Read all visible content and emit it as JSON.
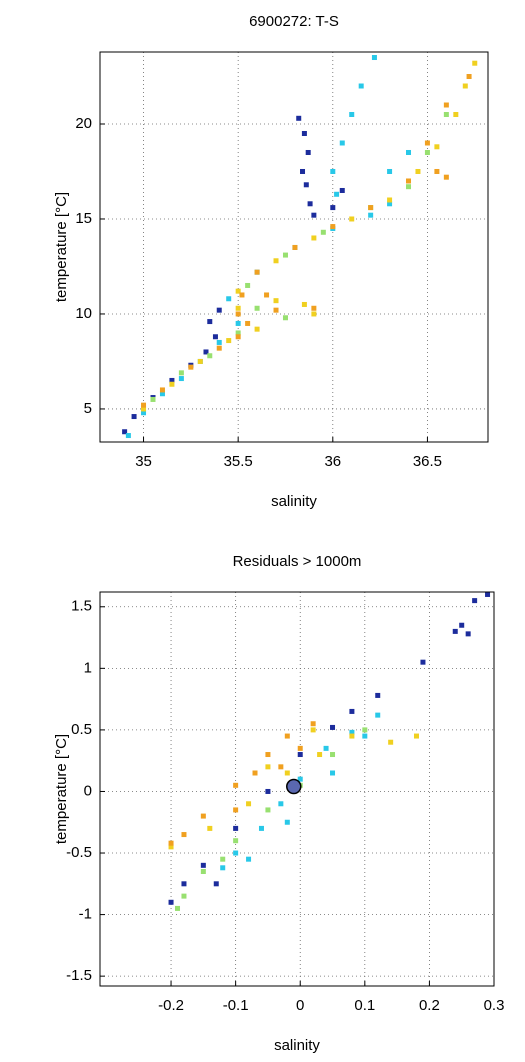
{
  "chart_data": [
    {
      "type": "scatter",
      "title": "6900272: T-S",
      "x_label": "salinity",
      "y_label": "temperature [°C]",
      "xlim": [
        34.77,
        36.82
      ],
      "ylim": [
        3.26,
        23.79
      ],
      "xticks": [
        35,
        35.5,
        36,
        36.5
      ],
      "yticks": [
        5,
        10,
        15,
        20
      ],
      "grid": true,
      "series": [
        {
          "color": "#1c2c9c",
          "x": [
            35.82,
            35.85,
            35.87,
            35.84,
            35.86,
            35.88,
            35.9,
            36.0,
            36.05,
            35.4,
            35.35,
            35.38,
            35.33,
            35.25,
            35.15,
            35.05,
            34.95,
            34.9
          ],
          "values": [
            20.3,
            19.5,
            18.5,
            17.5,
            16.8,
            15.8,
            15.2,
            15.6,
            16.5,
            10.2,
            9.6,
            8.8,
            8.0,
            7.3,
            6.5,
            5.6,
            4.6,
            3.8
          ]
        },
        {
          "color": "#28c8e8",
          "x": [
            36.22,
            36.15,
            36.1,
            36.05,
            36.0,
            36.02,
            36.3,
            36.2,
            36.0,
            35.8,
            35.6,
            35.45,
            35.5,
            35.4,
            35.3,
            35.2,
            35.1,
            35.0,
            34.92,
            36.4,
            36.3
          ],
          "values": [
            23.5,
            22,
            20.5,
            19,
            17.5,
            16.3,
            15.8,
            15.2,
            14.5,
            13.5,
            12.2,
            10.8,
            9.5,
            8.5,
            7.5,
            6.6,
            5.8,
            4.8,
            3.6,
            18.5,
            17.5
          ]
        },
        {
          "color": "#98e070",
          "x": [
            36.6,
            36.5,
            36.4,
            36.2,
            35.95,
            35.75,
            35.55,
            35.6,
            35.75,
            35.5,
            35.35,
            35.2,
            35.05
          ],
          "values": [
            20.5,
            18.5,
            16.7,
            15.6,
            14.3,
            13.1,
            11.5,
            10.3,
            9.8,
            9.0,
            7.8,
            6.9,
            5.5
          ]
        },
        {
          "color": "#f0d020",
          "x": [
            36.75,
            36.7,
            36.65,
            36.55,
            36.45,
            36.3,
            36.1,
            35.9,
            35.7,
            35.5,
            35.5,
            35.7,
            35.85,
            35.9,
            35.6,
            35.45,
            35.3,
            35.15,
            35.0
          ],
          "values": [
            23.2,
            22,
            20.5,
            18.8,
            17.5,
            16,
            15,
            14,
            12.8,
            11.2,
            10.3,
            10.7,
            10.5,
            10.0,
            9.2,
            8.6,
            7.5,
            6.3,
            5.0
          ]
        },
        {
          "color": "#f0a020",
          "x": [
            36.72,
            36.6,
            36.5,
            36.55,
            36.6,
            36.4,
            36.2,
            36.0,
            35.8,
            35.6,
            35.52,
            35.5,
            35.55,
            35.7,
            35.9,
            35.65,
            35.5,
            35.4,
            35.25,
            35.1,
            35.0
          ],
          "values": [
            22.5,
            21,
            19,
            17.5,
            17.2,
            17,
            15.6,
            14.6,
            13.5,
            12.2,
            11,
            10,
            9.5,
            10.2,
            10.3,
            11,
            8.8,
            8.2,
            7.2,
            6.0,
            5.2
          ]
        }
      ]
    },
    {
      "type": "scatter",
      "title": "Residuals > 1000m",
      "x_label": "salinity",
      "y_label": "temperature [°C]",
      "xlim": [
        -0.31,
        0.3
      ],
      "ylim": [
        -1.58,
        1.62
      ],
      "xticks": [
        -0.2,
        -0.1,
        0,
        0.1,
        0.2,
        0.3
      ],
      "yticks": [
        -1.5,
        -1,
        -0.5,
        0,
        0.5,
        1,
        1.5
      ],
      "grid": true,
      "series": [
        {
          "color": "#1c2c9c",
          "x": [
            0.29,
            0.27,
            0.25,
            0.24,
            0.26,
            0.19,
            0.12,
            0.08,
            0.05,
            0.0,
            -0.05,
            -0.1,
            -0.15,
            -0.18,
            -0.2,
            -0.13
          ],
          "values": [
            1.6,
            1.55,
            1.35,
            1.3,
            1.28,
            1.05,
            0.78,
            0.65,
            0.52,
            0.3,
            0.0,
            -0.3,
            -0.6,
            -0.75,
            -0.9,
            -0.75
          ]
        },
        {
          "color": "#28c8e8",
          "x": [
            0.12,
            0.08,
            0.04,
            0.0,
            -0.03,
            -0.06,
            -0.1,
            -0.12,
            -0.08,
            0.05,
            0.1,
            -0.02
          ],
          "values": [
            0.62,
            0.48,
            0.35,
            0.1,
            -0.1,
            -0.3,
            -0.5,
            -0.62,
            -0.55,
            0.15,
            0.45,
            -0.25
          ]
        },
        {
          "color": "#98e070",
          "x": [
            -0.18,
            -0.15,
            -0.12,
            -0.1,
            -0.05,
            0.0,
            0.05,
            0.1,
            -0.19
          ],
          "values": [
            -0.85,
            -0.65,
            -0.55,
            -0.4,
            -0.15,
            0.05,
            0.3,
            0.5,
            -0.95
          ]
        },
        {
          "color": "#f0d020",
          "x": [
            0.18,
            0.14,
            0.08,
            0.03,
            -0.02,
            -0.08,
            -0.14,
            -0.2,
            0.02,
            -0.05
          ],
          "values": [
            0.45,
            0.4,
            0.45,
            0.3,
            0.15,
            -0.1,
            -0.3,
            -0.45,
            0.5,
            0.2
          ]
        },
        {
          "color": "#f0a020",
          "x": [
            0.02,
            -0.02,
            -0.05,
            -0.07,
            -0.1,
            -0.15,
            -0.18,
            -0.03,
            0.0,
            -0.1,
            -0.2
          ],
          "values": [
            0.55,
            0.45,
            0.3,
            0.15,
            0.05,
            -0.2,
            -0.35,
            0.2,
            0.35,
            -0.15,
            -0.42
          ]
        },
        {
          "color": "#5a68b0",
          "marker": "big",
          "x": [
            -0.01
          ],
          "values": [
            0.04
          ]
        }
      ]
    }
  ]
}
